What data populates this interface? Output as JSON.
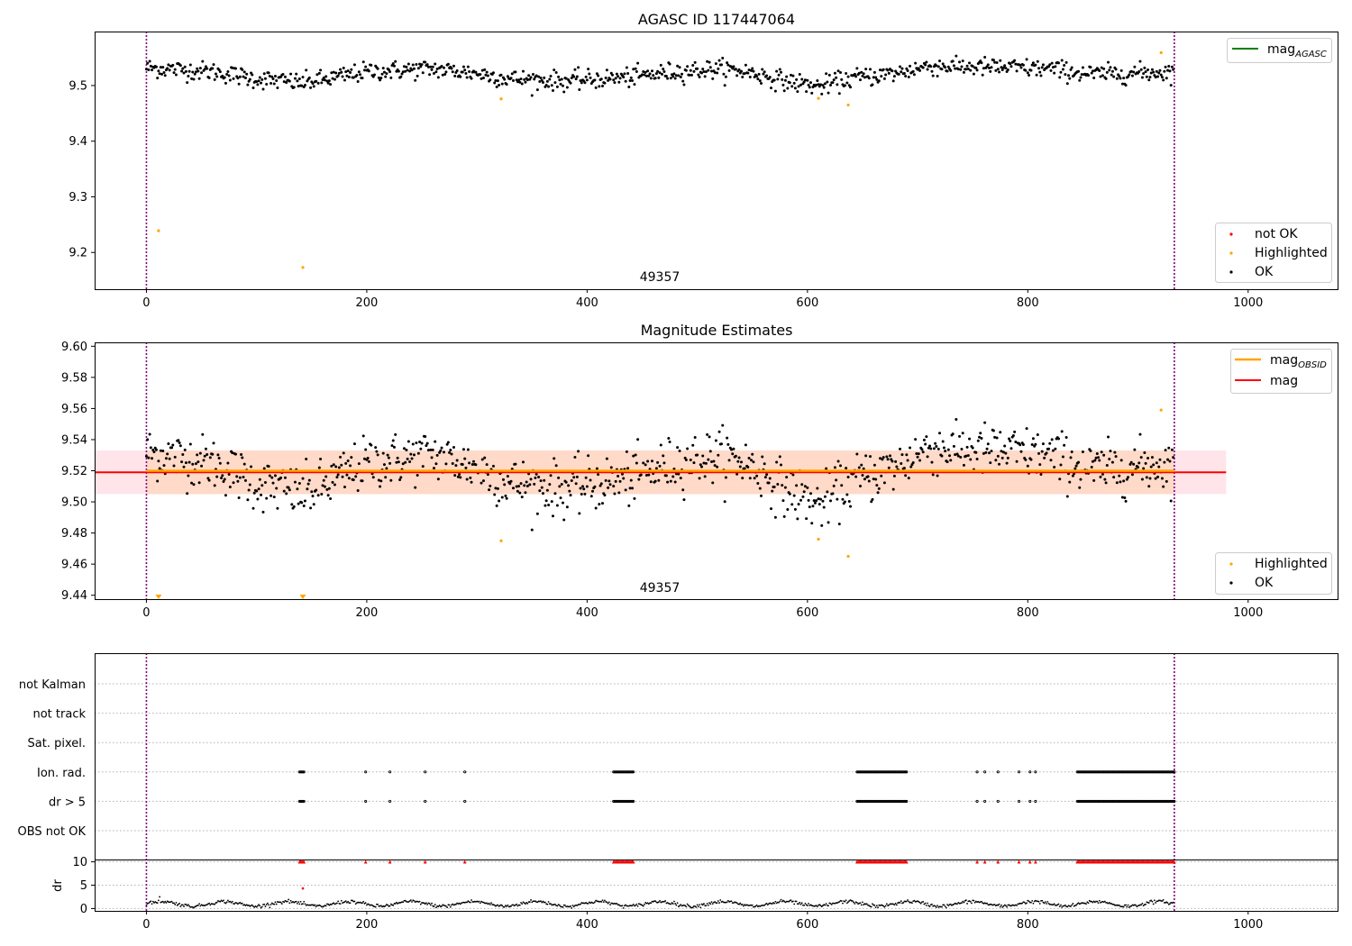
{
  "colors": {
    "ok": "#000000",
    "highlighted": "#ffa500",
    "not_ok": "#ff0000",
    "mag_agasc": "#008000",
    "mag_obsid": "#ffa500",
    "mag": "#ff0000",
    "band_inner": "#ffdac8",
    "band_outer": "#ffe4ea",
    "boundary": "#800080",
    "grid": "#b0b0b0"
  },
  "chart_data": [
    {
      "type": "scatter",
      "title": "AGASC ID 117447064",
      "xlim": [
        -47,
        1082
      ],
      "ylim": [
        9.134,
        9.597
      ],
      "xticks": [
        0,
        200,
        400,
        600,
        800,
        1000
      ],
      "yticks": [
        9.2,
        9.3,
        9.4,
        9.5
      ],
      "obsid_label": "49357",
      "obsid_label_x": 466,
      "obs_boundaries_x": [
        0,
        933
      ],
      "n_points": 933,
      "baseline": 9.52,
      "legend_top": [
        {
          "name": "mag",
          "sub": "AGASC",
          "color_key": "mag_agasc"
        }
      ],
      "legend_bottom": [
        {
          "name": "not OK",
          "color_key": "not_ok"
        },
        {
          "name": "Highlighted",
          "color_key": "highlighted"
        },
        {
          "name": "OK",
          "color_key": "ok"
        }
      ],
      "highlighted": [
        {
          "x": 11,
          "y": 9.239
        },
        {
          "x": 142,
          "y": 9.173
        },
        {
          "x": 322,
          "y": 9.476
        },
        {
          "x": 610,
          "y": 9.477
        },
        {
          "x": 637,
          "y": 9.465
        },
        {
          "x": 921,
          "y": 9.559
        }
      ],
      "trend_knots": [
        [
          0,
          9.532
        ],
        [
          60,
          9.525
        ],
        [
          100,
          9.512
        ],
        [
          140,
          9.505
        ],
        [
          160,
          9.51
        ],
        [
          200,
          9.525
        ],
        [
          260,
          9.53
        ],
        [
          300,
          9.522
        ],
        [
          330,
          9.512
        ],
        [
          380,
          9.508
        ],
        [
          440,
          9.515
        ],
        [
          480,
          9.525
        ],
        [
          520,
          9.53
        ],
        [
          545,
          9.525
        ],
        [
          580,
          9.508
        ],
        [
          610,
          9.498
        ],
        [
          640,
          9.513
        ],
        [
          680,
          9.522
        ],
        [
          710,
          9.535
        ],
        [
          760,
          9.533
        ],
        [
          820,
          9.53
        ],
        [
          860,
          9.52
        ],
        [
          933,
          9.525
        ]
      ]
    },
    {
      "type": "scatter",
      "title": "Magnitude Estimates",
      "xlim": [
        -47,
        1082
      ],
      "ylim": [
        9.4375,
        9.6025
      ],
      "xticks": [
        0,
        200,
        400,
        600,
        800,
        1000
      ],
      "yticks": [
        9.44,
        9.46,
        9.48,
        9.5,
        9.52,
        9.54,
        9.56,
        9.58,
        9.6
      ],
      "ytick_labels": [
        "9.44",
        "9.46",
        "9.48",
        "9.50",
        "9.52",
        "9.54",
        "9.56",
        "9.58",
        "9.60"
      ],
      "obsid_label": "49357",
      "obsid_label_x": 466,
      "obs_boundaries_x": [
        0,
        933
      ],
      "mag": 9.519,
      "mag_obsid": 9.52,
      "band_inner": [
        9.505,
        9.533
      ],
      "band_inner_x": [
        0,
        933
      ],
      "band_outer": [
        9.505,
        9.533
      ],
      "band_outer_x": [
        -47,
        980
      ],
      "mag_line_x": [
        -47,
        980
      ],
      "legend_top": [
        {
          "name": "mag",
          "sub": "OBSID",
          "color_key": "mag_obsid"
        },
        {
          "name": "mag",
          "sub": "",
          "color_key": "mag"
        }
      ],
      "legend_bottom": [
        {
          "name": "Highlighted",
          "color_key": "highlighted"
        },
        {
          "name": "OK",
          "color_key": "ok"
        }
      ],
      "highlighted": [
        {
          "x": 322,
          "y": 9.475
        },
        {
          "x": 610,
          "y": 9.476
        },
        {
          "x": 637,
          "y": 9.465
        },
        {
          "x": 921,
          "y": 9.559
        }
      ],
      "off_scale_low_x": [
        11,
        142
      ]
    },
    {
      "type": "scatter",
      "title": "",
      "xlim": [
        -47,
        1082
      ],
      "xticks": [
        0,
        200,
        400,
        600,
        800,
        1000
      ],
      "obs_boundaries_x": [
        0,
        933
      ],
      "flag_rows": [
        "not Kalman",
        "not track",
        "Sat. pixel.",
        "Ion. rad.",
        "dr > 5",
        "OBS not OK"
      ],
      "flag_rows_with_points": [
        "Ion. rad.",
        "dr > 5"
      ],
      "flag_x_ranges": [
        [
          139,
          143
        ],
        [
          199,
          199
        ],
        [
          221,
          221
        ],
        [
          253,
          253
        ],
        [
          289,
          289
        ],
        [
          424,
          442
        ],
        [
          645,
          690
        ],
        [
          754,
          754
        ],
        [
          761,
          761
        ],
        [
          773,
          773
        ],
        [
          792,
          792
        ],
        [
          802,
          802
        ],
        [
          807,
          807
        ],
        [
          845,
          933
        ]
      ],
      "dr": {
        "ylabel": "dr",
        "ylim": [
          -0.5,
          10.3
        ],
        "yticks": [
          0,
          5,
          10
        ],
        "threshold": 10,
        "outliers": [
          {
            "x": 142,
            "y": 4.3
          }
        ],
        "spike": {
          "x": 12,
          "y": 2.5
        }
      }
    }
  ]
}
